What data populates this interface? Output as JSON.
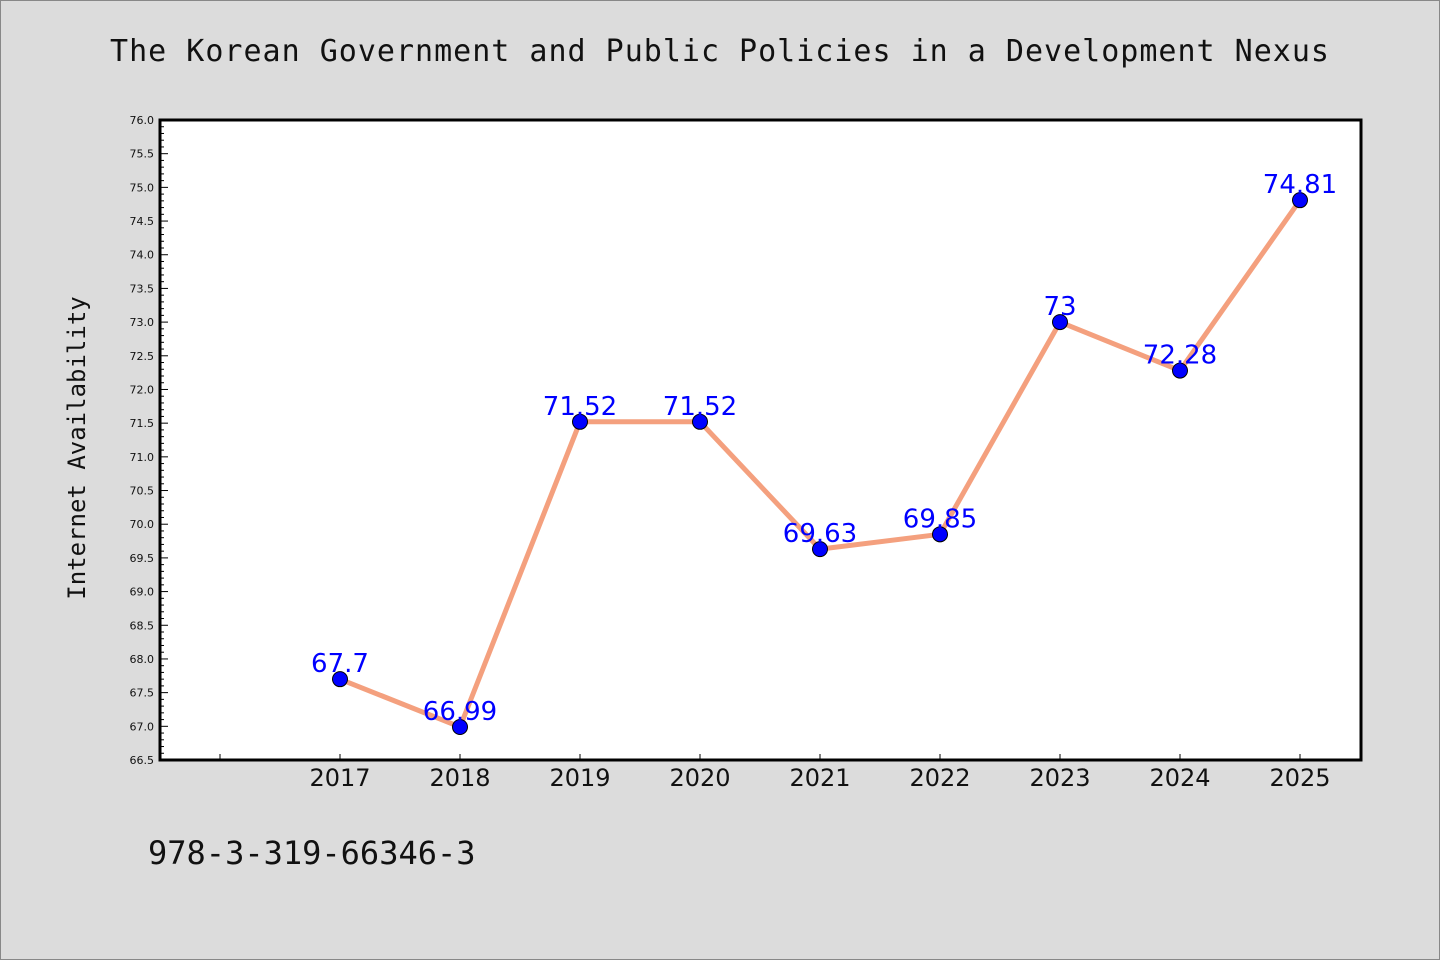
{
  "chart_data": {
    "type": "line",
    "title": "The Korean Government and Public Policies in a Development Nexus",
    "xlabel": "",
    "ylabel": "Internet Availability",
    "categories": [
      "2017",
      "2018",
      "2019",
      "2020",
      "2021",
      "2022",
      "2023",
      "2024",
      "2025"
    ],
    "values": [
      67.7,
      66.99,
      71.52,
      71.52,
      69.63,
      69.85,
      73,
      72.28,
      74.81
    ],
    "value_labels": [
      "67.7",
      "66.99",
      "71.52",
      "71.52",
      "69.63",
      "69.85",
      "73",
      "72.28",
      "74.81"
    ],
    "ylim": [
      66.5,
      76.0
    ],
    "y_ticks": [
      "66.5",
      "67.0",
      "67.5",
      "68.0",
      "68.5",
      "69.0",
      "69.5",
      "70.0",
      "70.5",
      "71.0",
      "71.5",
      "72.0",
      "72.5",
      "73.0",
      "73.5",
      "74.0",
      "74.5",
      "75.0",
      "75.5",
      "76.0"
    ],
    "grid": false,
    "colors": {
      "line": "#f4a07e",
      "marker": "#0000ff",
      "label": "#0000ff",
      "background": "#dcdcdc",
      "plot_bg": "#ffffff"
    }
  },
  "footer": {
    "code": "978-3-319-66346-3"
  }
}
